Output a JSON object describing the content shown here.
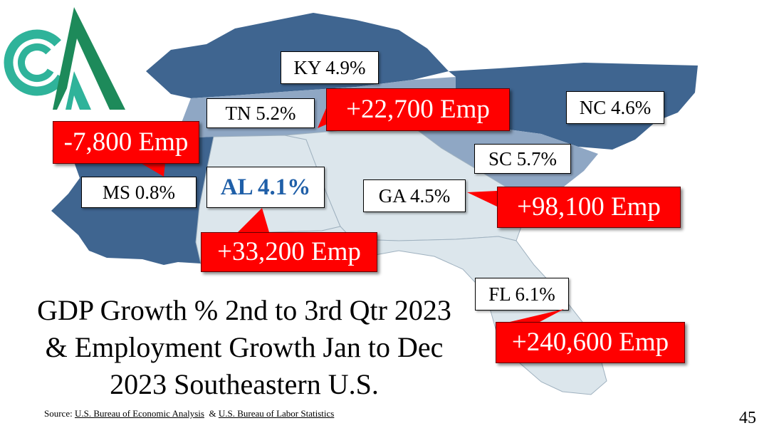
{
  "states": [
    {
      "id": "ky",
      "label": "KY 4.9%"
    },
    {
      "id": "tn",
      "label": "TN 5.2%"
    },
    {
      "id": "nc",
      "label": "NC 4.6%"
    },
    {
      "id": "sc",
      "label": "SC 5.7%"
    },
    {
      "id": "ms",
      "label": "MS 0.8%"
    },
    {
      "id": "al",
      "label": "AL 4.1%"
    },
    {
      "id": "ga",
      "label": "GA 4.5%"
    },
    {
      "id": "fl",
      "label": "FL 6.1%"
    }
  ],
  "callouts": {
    "tn": "+22,700 Emp",
    "ms": "-7,800 Emp",
    "al": "+33,200 Emp",
    "ga": "+98,100 Emp",
    "fl": "+240,600 Emp"
  },
  "title": {
    "line1": "GDP Growth % 2nd to 3rd Qtr 2023",
    "line2": "& Employment Growth Jan to Dec",
    "line3": "2023 Southeastern U.S."
  },
  "source": {
    "prefix": "Source:",
    "link1": "U.S. Bureau of Economic Analysis",
    "amp": "&",
    "link2": "U.S. Bureau of Labor Statistics"
  },
  "page_number": "45",
  "colors": {
    "dark_blue": "#3f6590",
    "mid_blue": "#8fa7c4",
    "light_blue": "#dce6ec",
    "callout_red": "#ff0000",
    "al_label_blue": "#1f5fa8",
    "logo_teal": "#2fb39a",
    "logo_green": "#1d8a5a"
  }
}
